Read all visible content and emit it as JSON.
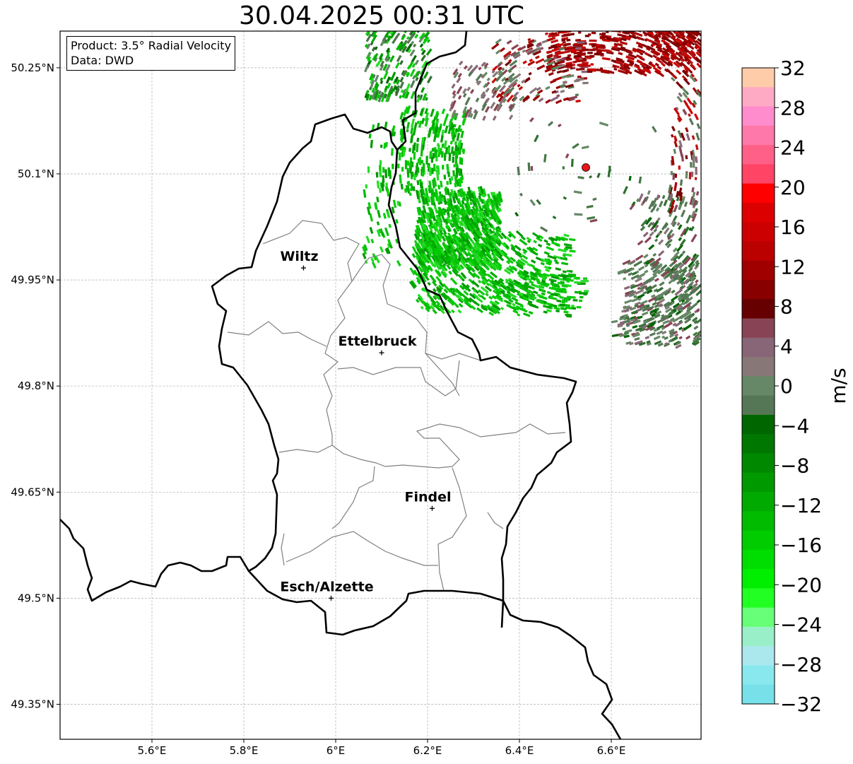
{
  "title": "30.04.2025 00:31 UTC",
  "info": {
    "product_line": "Product: 3.5° Radial Velocity",
    "data_line": "Data: DWD"
  },
  "map": {
    "lon_range": [
      5.4,
      6.8
    ],
    "lat_range": [
      49.3,
      50.3
    ],
    "lat_ticks": [
      "50.25°N",
      "50.1°N",
      "49.95°N",
      "49.8°N",
      "49.65°N",
      "49.5°N",
      "49.35°N"
    ],
    "lon_ticks": [
      "5.6°E",
      "5.8°E",
      "6°E",
      "6.2°E",
      "6.4°E",
      "6.6°E"
    ],
    "grid": "dashed",
    "radar_site_color": "#e8141b",
    "cities": [
      {
        "name": "Wiltz",
        "lon": 5.93,
        "lat": 49.967
      },
      {
        "name": "Ettelbruck",
        "lon": 6.1,
        "lat": 49.847
      },
      {
        "name": "Findel",
        "lon": 6.21,
        "lat": 49.627
      },
      {
        "name": "Esch/Alzette",
        "lon": 5.99,
        "lat": 49.5
      }
    ]
  },
  "colorbar": {
    "label": "m/s",
    "ticks": [
      "32",
      "28",
      "24",
      "20",
      "16",
      "12",
      "8",
      "4",
      "0",
      "−4",
      "−8",
      "−12",
      "−16",
      "−20",
      "−24",
      "−28",
      "−32"
    ],
    "colors_top_to_bottom": [
      "#ffccaa",
      "#ffaac4",
      "#ff8ccc",
      "#ff78aa",
      "#ff6088",
      "#ff4466",
      "#ff0000",
      "#dd0000",
      "#cc0000",
      "#bb0000",
      "#a00000",
      "#880000",
      "#660000",
      "#884455",
      "#886677",
      "#887777",
      "#668866",
      "#557755",
      "#006600",
      "#007700",
      "#008800",
      "#009900",
      "#00aa00",
      "#00bb00",
      "#00cc00",
      "#00dd00",
      "#00ee00",
      "#22ff22",
      "#66ff77",
      "#99f0c8",
      "#aae8ee",
      "#88e8ee",
      "#77e0e8"
    ]
  }
}
